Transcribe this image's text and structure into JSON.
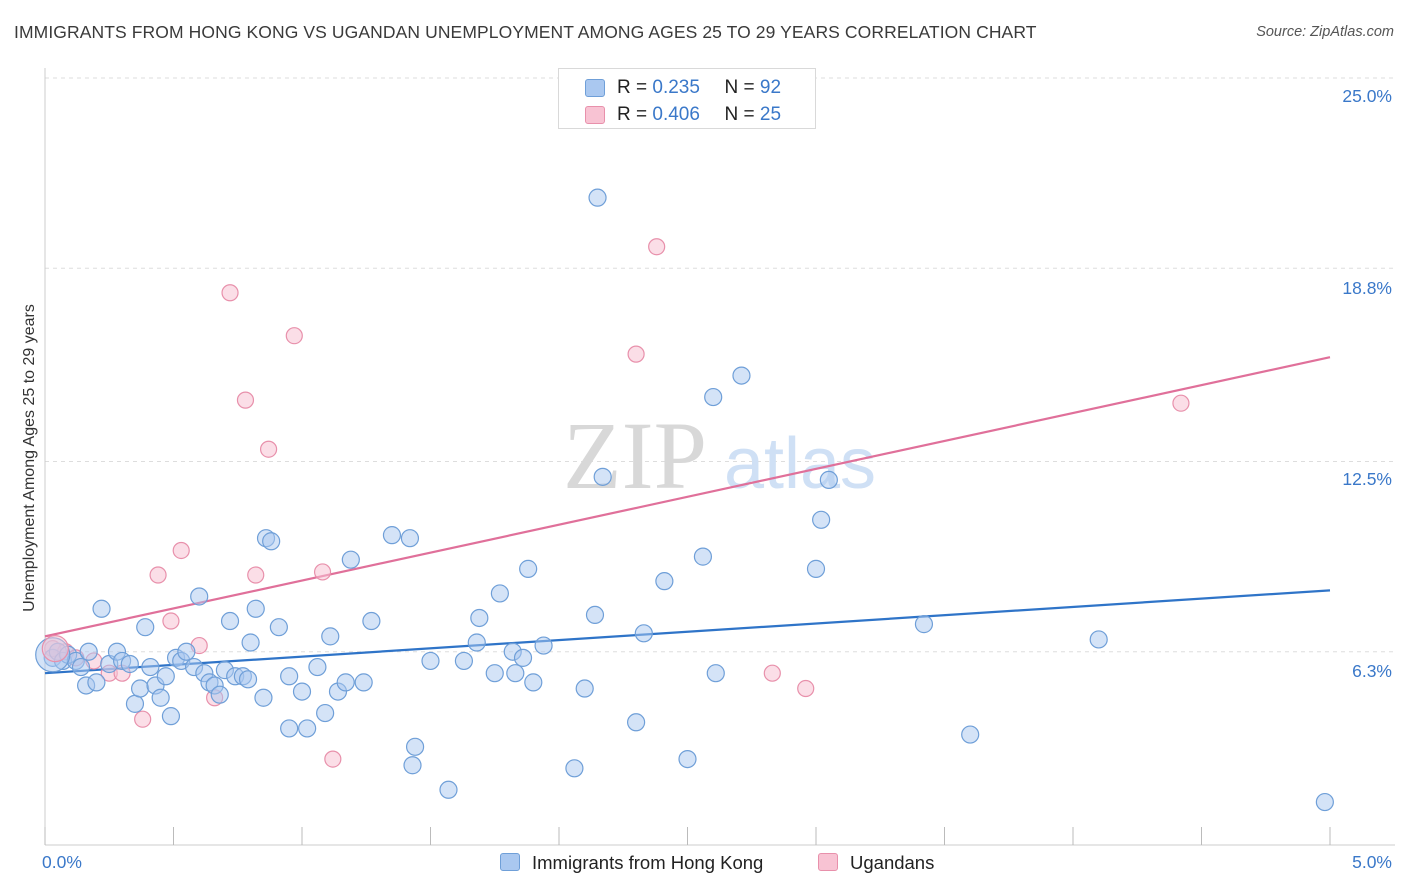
{
  "header": {
    "title": "IMMIGRANTS FROM HONG KONG VS UGANDAN UNEMPLOYMENT AMONG AGES 25 TO 29 YEARS CORRELATION CHART",
    "source": "Source: ZipAtlas.com"
  },
  "watermark": {
    "zip": "ZIP",
    "atlas": "atlas"
  },
  "legend": {
    "r_label": "R =",
    "n_label": "N =",
    "rows": [
      {
        "r": "0.235",
        "n": "92"
      },
      {
        "r": "0.406",
        "n": "25"
      }
    ]
  },
  "colors": {
    "blue_fill": "#aac8f0",
    "blue_stroke": "#6f9fd8",
    "blue_line": "#2f74c8",
    "pink_fill": "#f8c3d3",
    "pink_stroke": "#e890ab",
    "pink_line": "#e0709a",
    "tick_label": "#3a78c9",
    "grid": "#dddddd"
  },
  "chart_data": {
    "type": "scatter",
    "title": "IMMIGRANTS FROM HONG KONG VS UGANDAN UNEMPLOYMENT AMONG AGES 25 TO 29 YEARS CORRELATION CHART",
    "xlabel": "",
    "ylabel": "Unemployment Among Ages 25 to 29 years",
    "xlim": [
      0,
      5
    ],
    "ylim": [
      0,
      25
    ],
    "x_tick_labels": [
      "0.0%",
      "5.0%"
    ],
    "y_tick_labels": [
      "6.3%",
      "12.5%",
      "18.8%",
      "25.0%"
    ],
    "y_ticks": [
      6.3,
      12.5,
      18.8,
      25.0
    ],
    "grid": true,
    "series": [
      {
        "name": "Immigrants from Hong Kong",
        "color": "#aac8f0",
        "trend": {
          "x": [
            0,
            5
          ],
          "y": [
            5.6,
            8.3
          ]
        },
        "points": [
          [
            0.03,
            6.1
          ],
          [
            0.05,
            6.3
          ],
          [
            0.07,
            6.0
          ],
          [
            0.09,
            6.2
          ],
          [
            0.12,
            6.0
          ],
          [
            0.14,
            5.8
          ],
          [
            0.16,
            5.2
          ],
          [
            0.17,
            6.3
          ],
          [
            0.2,
            5.3
          ],
          [
            0.22,
            7.7
          ],
          [
            0.25,
            5.9
          ],
          [
            0.28,
            6.3
          ],
          [
            0.3,
            6.0
          ],
          [
            0.33,
            5.9
          ],
          [
            0.35,
            4.6
          ],
          [
            0.37,
            5.1
          ],
          [
            0.39,
            7.1
          ],
          [
            0.41,
            5.8
          ],
          [
            0.43,
            5.2
          ],
          [
            0.45,
            4.8
          ],
          [
            0.47,
            5.5
          ],
          [
            0.49,
            4.2
          ],
          [
            0.51,
            6.1
          ],
          [
            0.53,
            6.0
          ],
          [
            0.55,
            6.3
          ],
          [
            0.58,
            5.8
          ],
          [
            0.6,
            8.1
          ],
          [
            0.62,
            5.6
          ],
          [
            0.64,
            5.3
          ],
          [
            0.66,
            5.2
          ],
          [
            0.68,
            4.9
          ],
          [
            0.7,
            5.7
          ],
          [
            0.72,
            7.3
          ],
          [
            0.74,
            5.5
          ],
          [
            0.77,
            5.5
          ],
          [
            0.79,
            5.4
          ],
          [
            0.8,
            6.6
          ],
          [
            0.82,
            7.7
          ],
          [
            0.85,
            4.8
          ],
          [
            0.86,
            10.0
          ],
          [
            0.88,
            9.9
          ],
          [
            0.91,
            7.1
          ],
          [
            0.95,
            3.8
          ],
          [
            0.95,
            5.5
          ],
          [
            1.02,
            3.8
          ],
          [
            1.0,
            5.0
          ],
          [
            1.06,
            5.8
          ],
          [
            1.09,
            4.3
          ],
          [
            1.11,
            6.8
          ],
          [
            1.14,
            5.0
          ],
          [
            1.17,
            5.3
          ],
          [
            1.19,
            9.3
          ],
          [
            1.24,
            5.3
          ],
          [
            1.27,
            7.3
          ],
          [
            1.35,
            10.1
          ],
          [
            1.42,
            10.0
          ],
          [
            1.43,
            2.6
          ],
          [
            1.44,
            3.2
          ],
          [
            1.5,
            6.0
          ],
          [
            1.57,
            1.8
          ],
          [
            1.63,
            6.0
          ],
          [
            1.68,
            6.6
          ],
          [
            1.69,
            7.4
          ],
          [
            1.75,
            5.6
          ],
          [
            1.77,
            8.2
          ],
          [
            1.82,
            6.3
          ],
          [
            1.83,
            5.6
          ],
          [
            1.86,
            6.1
          ],
          [
            1.88,
            9.0
          ],
          [
            1.9,
            5.3
          ],
          [
            1.94,
            6.5
          ],
          [
            2.06,
            2.5
          ],
          [
            2.1,
            5.1
          ],
          [
            2.14,
            7.5
          ],
          [
            2.15,
            21.1
          ],
          [
            2.17,
            12.0
          ],
          [
            2.3,
            4.0
          ],
          [
            2.33,
            6.9
          ],
          [
            2.41,
            8.6
          ],
          [
            2.5,
            2.8
          ],
          [
            2.56,
            9.4
          ],
          [
            2.6,
            14.6
          ],
          [
            2.61,
            5.6
          ],
          [
            2.71,
            15.3
          ],
          [
            3.0,
            9.0
          ],
          [
            3.02,
            10.6
          ],
          [
            3.05,
            11.9
          ],
          [
            3.42,
            7.2
          ],
          [
            3.6,
            3.6
          ],
          [
            4.1,
            6.7
          ],
          [
            4.98,
            1.4
          ]
        ]
      },
      {
        "name": "Ugandans",
        "color": "#f8c3d3",
        "trend": {
          "x": [
            0,
            5
          ],
          "y": [
            6.8,
            15.9
          ]
        },
        "points": [
          [
            0.03,
            6.4
          ],
          [
            0.08,
            6.3
          ],
          [
            0.12,
            6.1
          ],
          [
            0.19,
            6.0
          ],
          [
            0.25,
            5.6
          ],
          [
            0.3,
            5.6
          ],
          [
            0.38,
            4.1
          ],
          [
            0.44,
            8.8
          ],
          [
            0.49,
            7.3
          ],
          [
            0.53,
            9.6
          ],
          [
            0.6,
            6.5
          ],
          [
            0.66,
            4.8
          ],
          [
            0.72,
            18.0
          ],
          [
            0.78,
            14.5
          ],
          [
            0.82,
            8.8
          ],
          [
            0.87,
            12.9
          ],
          [
            0.97,
            16.6
          ],
          [
            1.08,
            8.9
          ],
          [
            1.12,
            2.8
          ],
          [
            2.3,
            16.0
          ],
          [
            2.38,
            19.5
          ],
          [
            2.83,
            5.6
          ],
          [
            2.96,
            5.1
          ],
          [
            4.42,
            14.4
          ]
        ]
      }
    ]
  },
  "bottom_legend": {
    "items": [
      "Immigrants from Hong Kong",
      "Ugandans"
    ]
  }
}
